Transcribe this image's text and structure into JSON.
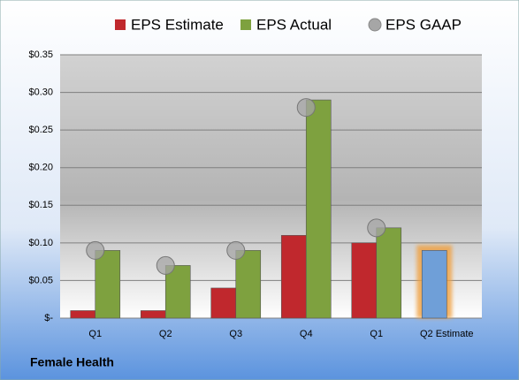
{
  "chart_data": {
    "type": "bar",
    "caption": "Female Health",
    "categories": [
      "Q1",
      "Q2",
      "Q3",
      "Q4",
      "Q1",
      "Q2 Estimate"
    ],
    "series": [
      {
        "name": "EPS Estimate",
        "color": "#c0282d",
        "point_colors": [
          null,
          null,
          null,
          null,
          null,
          "#6f9fd8"
        ],
        "values": [
          0.01,
          0.01,
          0.04,
          0.11,
          0.1,
          0.09
        ]
      },
      {
        "name": "EPS Actual",
        "color": "#7ea13f",
        "values": [
          0.09,
          0.07,
          0.09,
          0.29,
          0.12,
          null
        ]
      },
      {
        "name": "EPS GAAP",
        "color": "#a6a6a6",
        "marker": "circle",
        "values": [
          0.09,
          0.07,
          0.09,
          0.28,
          0.12,
          null
        ]
      }
    ],
    "ylim": [
      0,
      0.35
    ],
    "yticks": [
      {
        "value": 0,
        "label": "$-"
      },
      {
        "value": 0.05,
        "label": "$0.05"
      },
      {
        "value": 0.1,
        "label": "$0.10"
      },
      {
        "value": 0.15,
        "label": "$0.15"
      },
      {
        "value": 0.2,
        "label": "$0.20"
      },
      {
        "value": 0.25,
        "label": "$0.25"
      },
      {
        "value": 0.3,
        "label": "$0.30"
      },
      {
        "value": 0.35,
        "label": "$0.35"
      }
    ],
    "grid": true,
    "legend": "top"
  }
}
